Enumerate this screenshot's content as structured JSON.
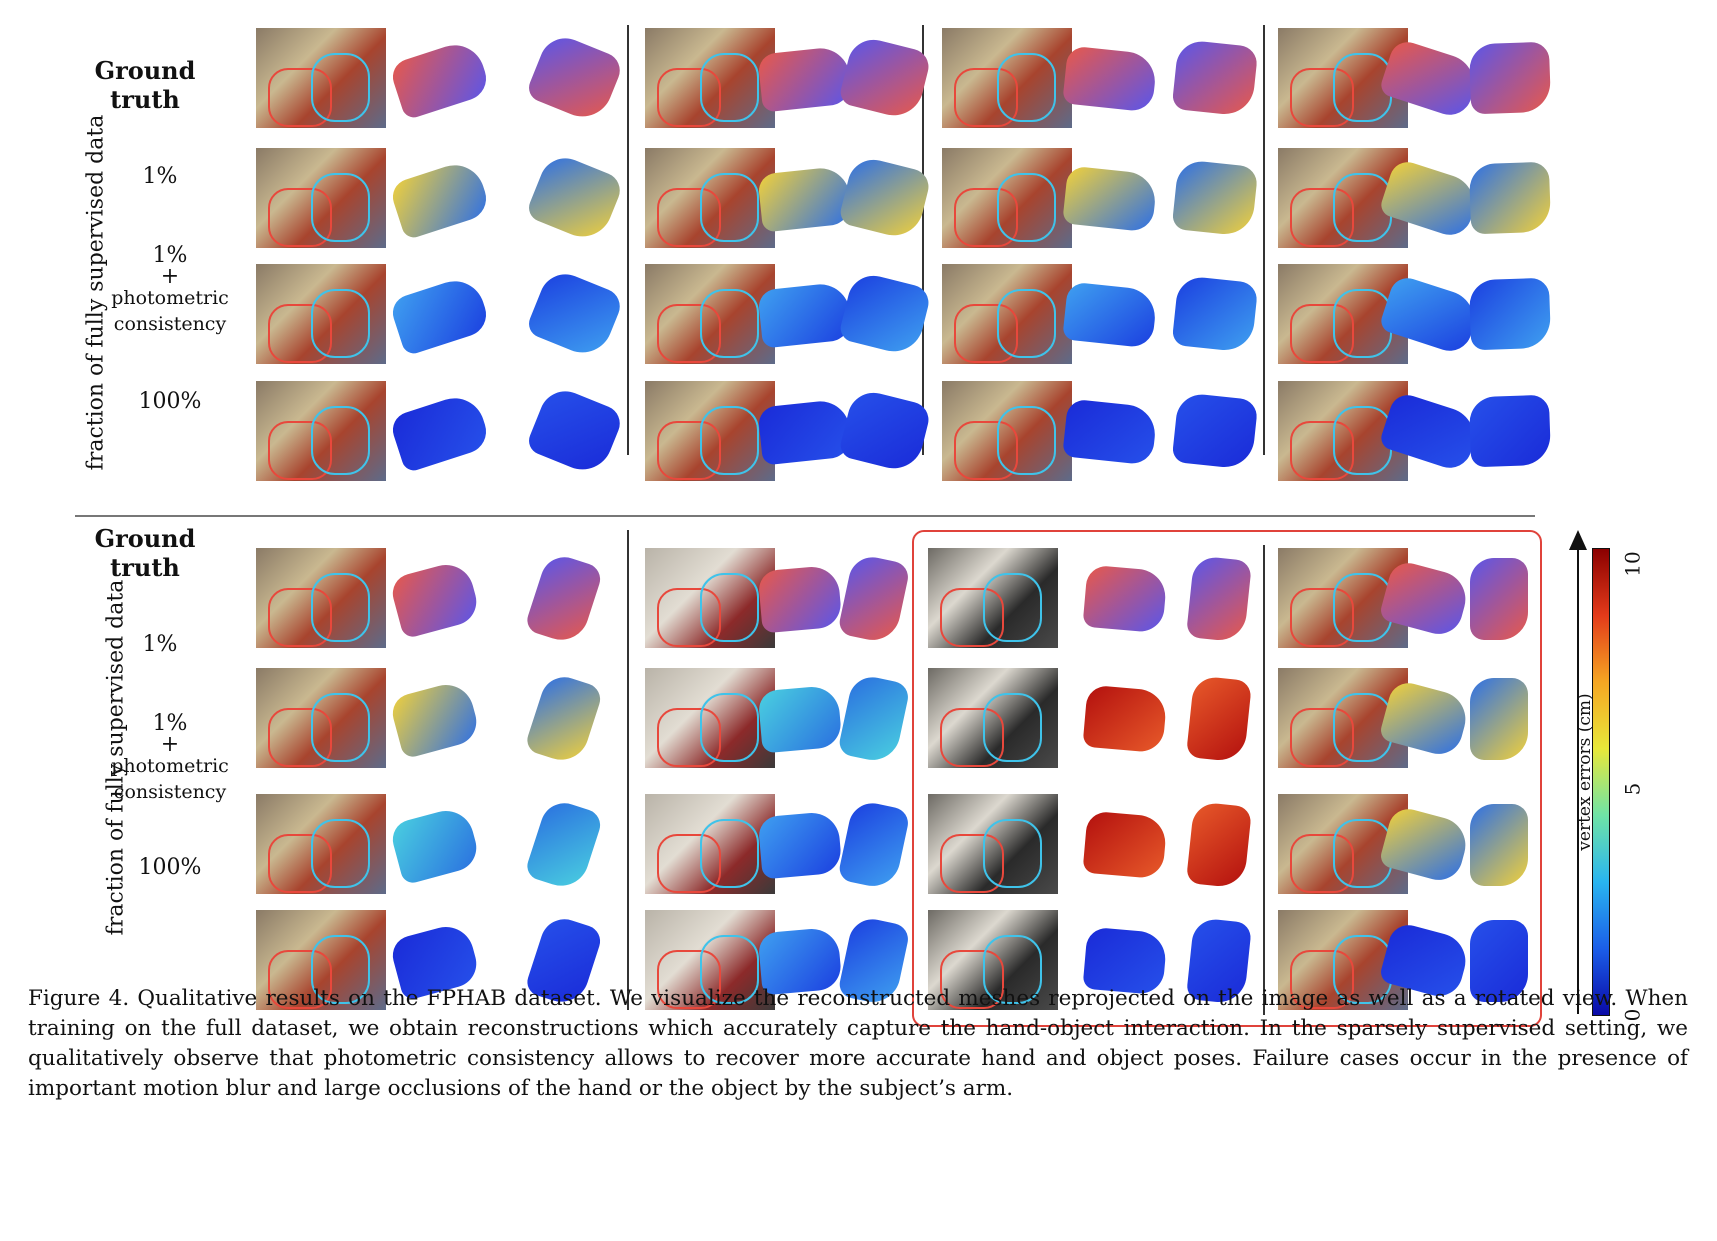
{
  "row_labels": {
    "ground_truth": "Ground truth",
    "one_percent": "1%",
    "one_percent_plus": "1%",
    "plus": "+",
    "photometric": "photometric",
    "consistency": "consistency",
    "hundred": "100%"
  },
  "y_axis_label": "fraction of fully supervised data",
  "colorbar": {
    "label": "vertex errors (cm)",
    "ticks": [
      "10",
      "5",
      "0"
    ],
    "colors": [
      "#8b0000",
      "#e33b1a",
      "#f5a623",
      "#e8e83a",
      "#6fe3a6",
      "#29b5f0",
      "#1b5ee8",
      "#0a0aa8"
    ]
  },
  "caption": "Figure 4. Qualitative results on the FPHAB dataset. We visualize the reconstructed meshes reprojected on the image as well as a rotated view. When training on the full dataset, we obtain reconstructions which accurately capture the hand-object interaction. In the sparsely supervised setting, we qualitatively observe that photometric consistency allows to recover more accurate hand and object poses. Failure cases occur in the presence of important motion blur and large occlusions of the hand or the object by the subject’s arm."
}
